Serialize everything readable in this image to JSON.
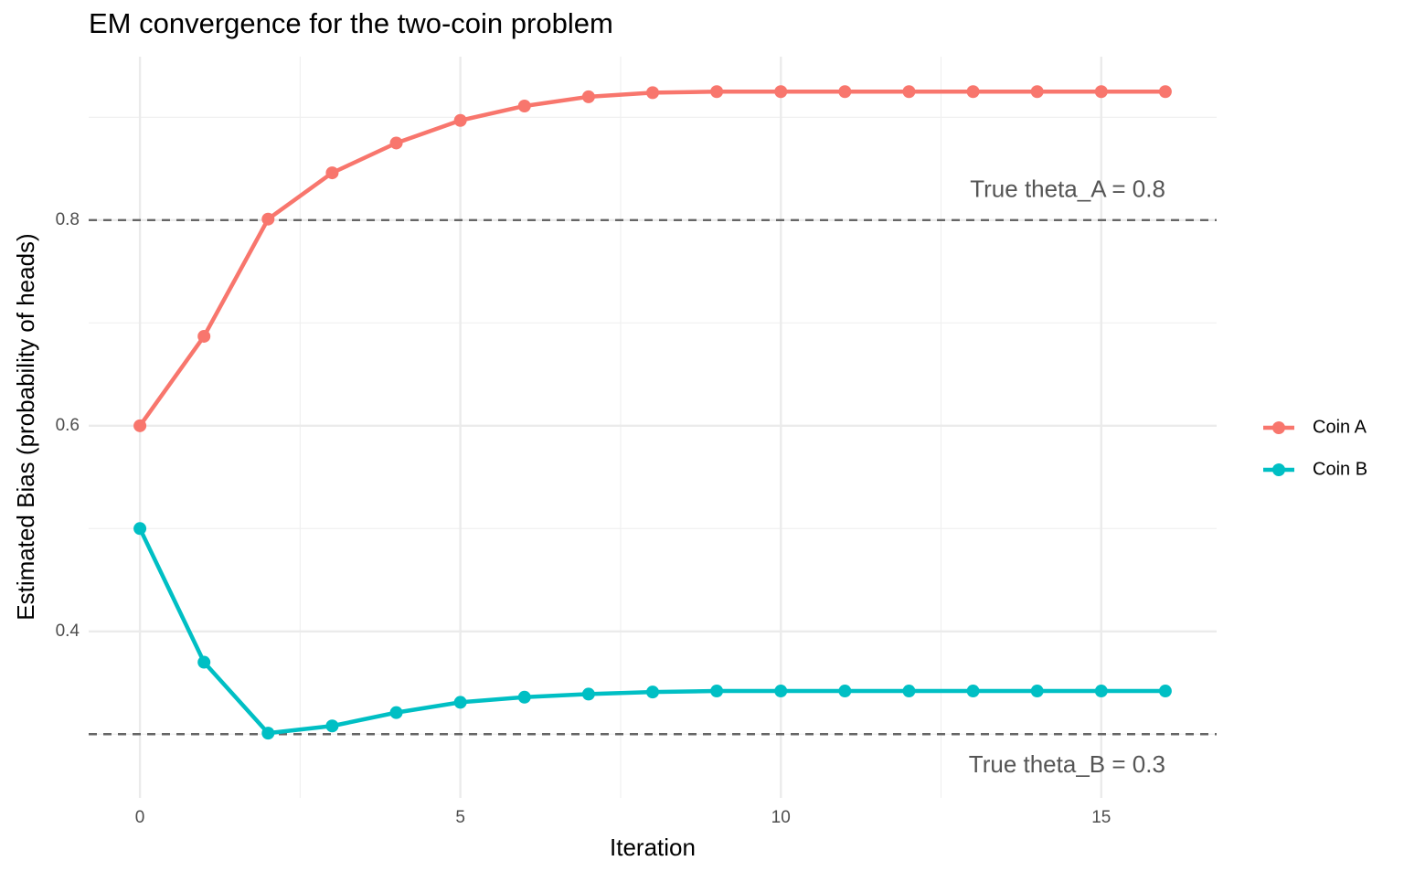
{
  "chart_data": {
    "type": "line",
    "title": "EM convergence for the two-coin problem",
    "x_label": "Iteration",
    "y_label": "Estimated Bias (probability of heads)",
    "x": [
      0,
      1,
      2,
      3,
      4,
      5,
      6,
      7,
      8,
      9,
      10,
      11,
      12,
      13,
      14,
      15,
      16
    ],
    "series": [
      {
        "name": "Coin A",
        "color": "#f8766d",
        "values": [
          0.6,
          0.687,
          0.801,
          0.846,
          0.875,
          0.897,
          0.911,
          0.92,
          0.924,
          0.925,
          0.925,
          0.925,
          0.925,
          0.925,
          0.925,
          0.925,
          0.925
        ]
      },
      {
        "name": "Coin B",
        "color": "#00bfc4",
        "values": [
          0.5,
          0.37,
          0.301,
          0.308,
          0.321,
          0.331,
          0.336,
          0.339,
          0.341,
          0.342,
          0.342,
          0.342,
          0.342,
          0.342,
          0.342,
          0.342,
          0.342
        ]
      }
    ],
    "hlines": [
      {
        "value": 0.8,
        "label": "True theta_A = 0.8"
      },
      {
        "value": 0.3,
        "label": "True theta_B = 0.3"
      }
    ],
    "xlim": [
      -0.8,
      16.8
    ],
    "xticks": [
      0,
      5,
      10,
      15
    ],
    "xminor": [
      2.5,
      7.5,
      12.5
    ],
    "ylim": [
      0.238,
      0.959
    ],
    "yticks": [
      0.4,
      0.6,
      0.8
    ],
    "yminor": [
      0.3,
      0.5,
      0.7,
      0.9
    ],
    "grid": true,
    "legend": "right"
  }
}
